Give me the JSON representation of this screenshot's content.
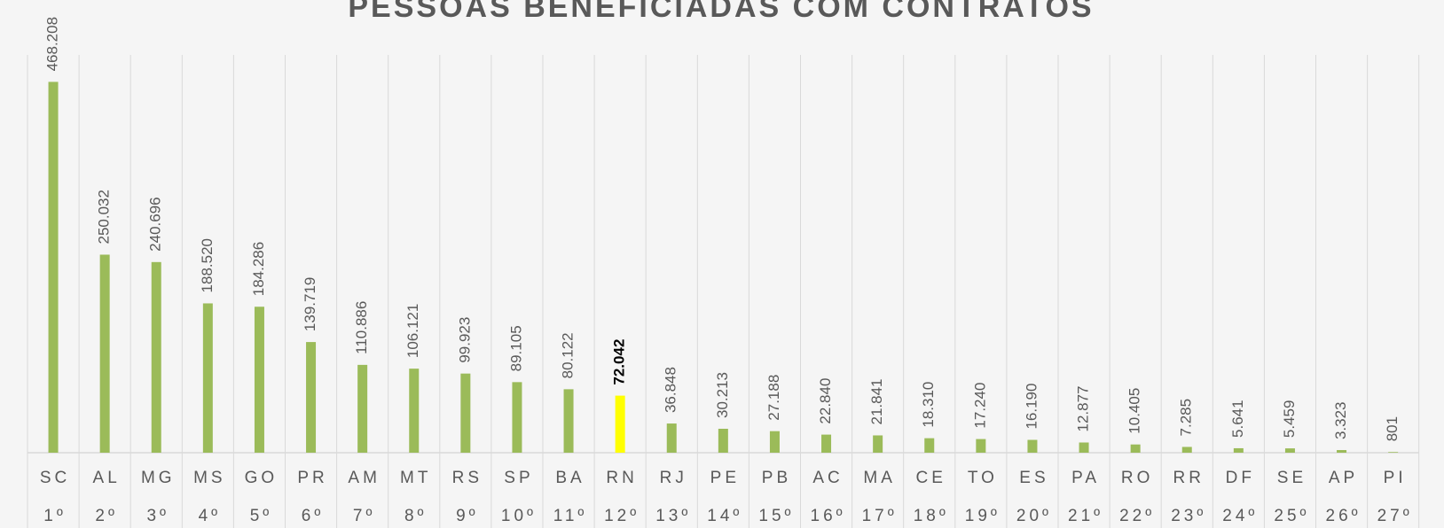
{
  "chart_data": {
    "type": "bar",
    "title": "PESSOAS BENEFICIADAS COM CONTRATOS",
    "categories": [
      "SC",
      "AL",
      "MG",
      "MS",
      "GO",
      "PR",
      "AM",
      "MT",
      "RS",
      "SP",
      "BA",
      "RN",
      "RJ",
      "PE",
      "PB",
      "AC",
      "MA",
      "CE",
      "TO",
      "ES",
      "PA",
      "RO",
      "RR",
      "DF",
      "SE",
      "AP",
      "PI"
    ],
    "ranks": [
      "1º",
      "2º",
      "3º",
      "4º",
      "5º",
      "6º",
      "7º",
      "8º",
      "9º",
      "10º",
      "11º",
      "12º",
      "13º",
      "14º",
      "15º",
      "16º",
      "17º",
      "18º",
      "19º",
      "20º",
      "21º",
      "22º",
      "23º",
      "24º",
      "25º",
      "26º",
      "27º"
    ],
    "values": [
      468208,
      250032,
      240696,
      188520,
      184286,
      139719,
      110886,
      106121,
      99923,
      89105,
      80122,
      72042,
      36848,
      30213,
      27188,
      22840,
      21841,
      18310,
      17240,
      16190,
      12877,
      10405,
      7285,
      5641,
      5459,
      3323,
      801
    ],
    "value_labels": [
      "468.208",
      "250.032",
      "240.696",
      "188.520",
      "184.286",
      "139.719",
      "110.886",
      "106.121",
      "99.923",
      "89.105",
      "80.122",
      "72.042",
      "36.848",
      "30.213",
      "27.188",
      "22.840",
      "21.841",
      "18.310",
      "17.240",
      "16.190",
      "12.877",
      "10.405",
      "7.285",
      "5.641",
      "5.459",
      "3.323",
      "801"
    ],
    "color": "#9bbb59",
    "highlight": {
      "category": "RN",
      "color": "#ffff00",
      "label_color": "#000000"
    },
    "ylim": [
      0,
      500000
    ]
  }
}
